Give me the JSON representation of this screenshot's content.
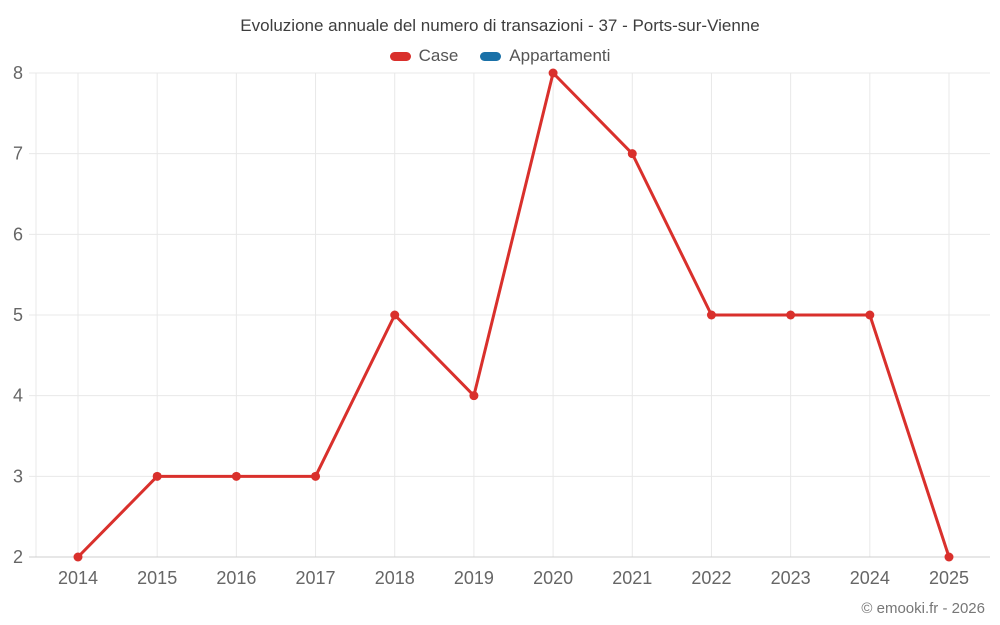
{
  "title": "Evoluzione annuale del numero di transazioni - 37 - Ports-sur-Vienne",
  "legend": [
    {
      "label": "Case",
      "color": "#d9302c"
    },
    {
      "label": "Appartamenti",
      "color": "#1a71a8"
    }
  ],
  "footer": {
    "copyright": "© emooki.fr - 2026"
  },
  "colors": {
    "grid": "#e8e8e8",
    "axis_line": "#cfcfcf",
    "tick_label": "#666666",
    "series_case": "#d9302c",
    "series_appartamenti": "#1a71a8"
  },
  "chart_data": {
    "type": "line",
    "title": "Evoluzione annuale del numero di transazioni - 37 - Ports-sur-Vienne",
    "x": [
      2014,
      2015,
      2016,
      2017,
      2018,
      2019,
      2020,
      2021,
      2022,
      2023,
      2024,
      2025
    ],
    "series": [
      {
        "name": "Case",
        "color": "#d9302c",
        "values": [
          2,
          3,
          3,
          3,
          5,
          4,
          8,
          7,
          5,
          5,
          5,
          2
        ]
      },
      {
        "name": "Appartamenti",
        "color": "#1a71a8",
        "values": []
      }
    ],
    "xlabel": "",
    "ylabel": "",
    "ylim": [
      2,
      8
    ],
    "yticks": [
      2,
      3,
      4,
      5,
      6,
      7,
      8
    ],
    "grid": true,
    "legend_position": "top",
    "marker": "circle"
  }
}
